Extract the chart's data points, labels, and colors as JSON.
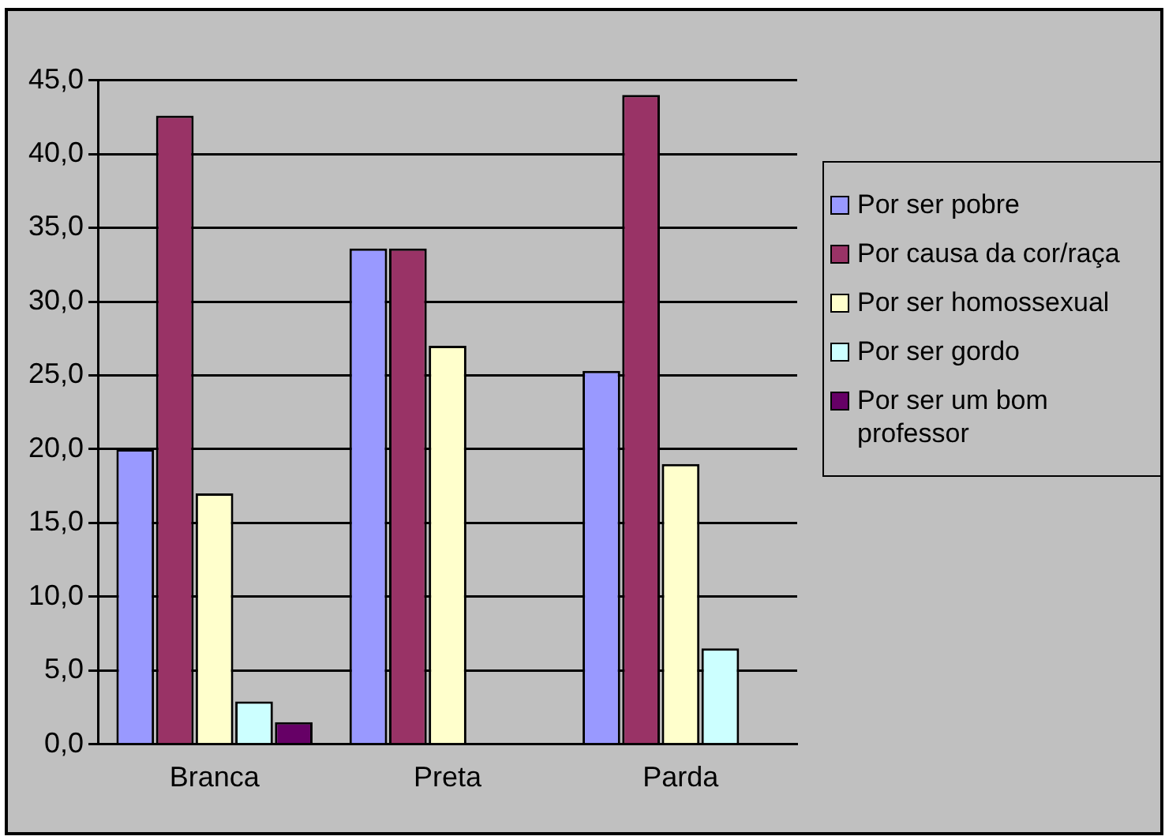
{
  "chart_data": {
    "type": "bar",
    "categories": [
      "Branca",
      "Preta",
      "Parda"
    ],
    "series": [
      {
        "name": "Por ser pobre",
        "color": "#9999ff",
        "values": [
          20.0,
          33.6,
          25.3
        ]
      },
      {
        "name": "Por causa da cor/raça",
        "color": "#993366",
        "values": [
          42.6,
          33.6,
          44.0
        ]
      },
      {
        "name": "Por ser homossexual",
        "color": "#ffffcc",
        "values": [
          17.0,
          27.0,
          19.0
        ]
      },
      {
        "name": "Por ser gordo",
        "color": "#ccffff",
        "values": [
          2.9,
          null,
          6.5
        ]
      },
      {
        "name": "Por ser um bom professor",
        "color": "#660066",
        "values": [
          1.5,
          null,
          null
        ]
      }
    ],
    "ylim": [
      0,
      45
    ],
    "yticks": [
      {
        "value": 0,
        "label": "0,0"
      },
      {
        "value": 5,
        "label": "5,0"
      },
      {
        "value": 10,
        "label": "10,0"
      },
      {
        "value": 15,
        "label": "15,0"
      },
      {
        "value": 20,
        "label": "20,0"
      },
      {
        "value": 25,
        "label": "25,0"
      },
      {
        "value": 30,
        "label": "30,0"
      },
      {
        "value": 35,
        "label": "35,0"
      },
      {
        "value": 40,
        "label": "40,0"
      },
      {
        "value": 45,
        "label": "45,0"
      }
    ],
    "grid": "y",
    "legend": "right"
  }
}
